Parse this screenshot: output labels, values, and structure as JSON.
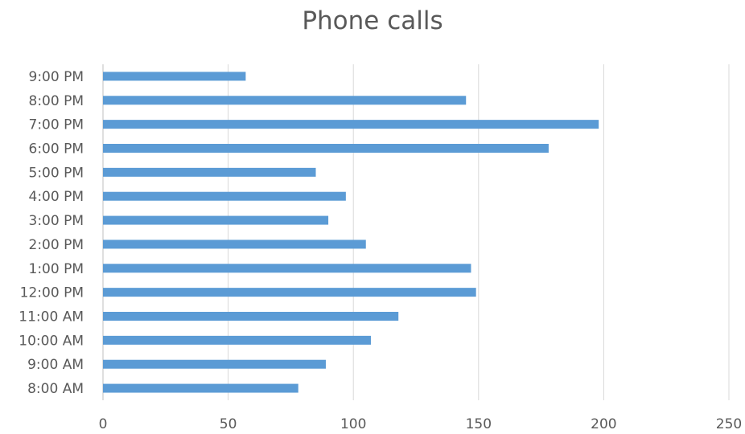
{
  "chart_data": {
    "type": "bar",
    "orientation": "horizontal",
    "title": "Phone calls",
    "xlabel": "",
    "ylabel": "",
    "categories": [
      "8:00 AM",
      "9:00 AM",
      "10:00 AM",
      "11:00 AM",
      "12:00 PM",
      "1:00 PM",
      "2:00 PM",
      "3:00 PM",
      "4:00 PM",
      "5:00 PM",
      "6:00 PM",
      "7:00 PM",
      "8:00 PM",
      "9:00 PM"
    ],
    "values": [
      78,
      89,
      107,
      118,
      149,
      147,
      105,
      90,
      97,
      85,
      178,
      198,
      145,
      57
    ],
    "xlim": [
      0,
      250
    ],
    "xticks": [
      0,
      50,
      100,
      150,
      200,
      250
    ],
    "grid": true,
    "legend": "none",
    "colors": {
      "bar": "#5b9bd5",
      "grid": "#d9d9d9",
      "axis": "#bfbfbf",
      "text": "#595959"
    }
  }
}
